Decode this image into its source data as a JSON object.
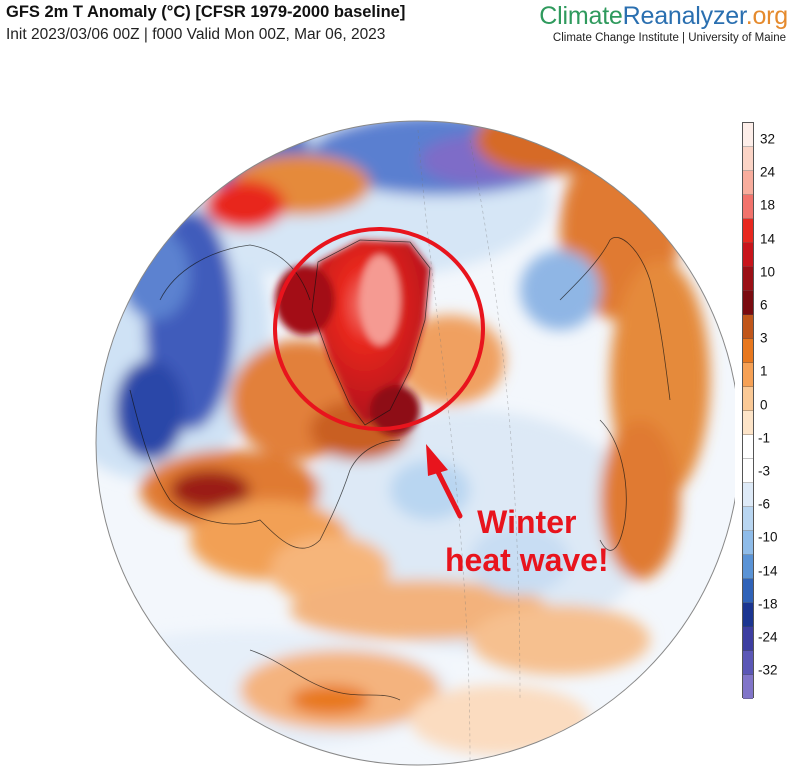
{
  "header": {
    "title": "GFS 2m T Anomaly (°C) [CFSR 1979-2000 baseline]",
    "subtitle": "Init 2023/03/06 00Z | f000 Valid Mon 00Z, Mar 06, 2023"
  },
  "brand": {
    "part1": "Climate",
    "part2": "Reanalyzer",
    "part3": ".org",
    "affiliation": "Climate Change Institute | University of Maine",
    "colors": {
      "part1": "#2f9a5d",
      "part2": "#2a6fb0",
      "part3": "#e58a2d"
    }
  },
  "map": {
    "projection": "orthographic",
    "annotation": {
      "line1": "Winter",
      "line2": "heat wave!",
      "color": "#e8141d"
    },
    "highlight_circle_color": "#e8141d"
  },
  "colorbar": {
    "labels": [
      "32",
      "24",
      "18",
      "14",
      "10",
      "6",
      "3",
      "1",
      "0",
      "-1",
      "-3",
      "-6",
      "-10",
      "-14",
      "-18",
      "-24",
      "-32"
    ],
    "colors": [
      "#fdeee9",
      "#fbd4c6",
      "#f8ad9d",
      "#f2736c",
      "#e8281f",
      "#c8141b",
      "#9b0f15",
      "#7a0b10",
      "#c0561a",
      "#e8781e",
      "#f6a155",
      "#fac996",
      "#fde4c8",
      "#ffffff",
      "#ffffff",
      "#deeaf7",
      "#b9d6f1",
      "#8fbce9",
      "#5a93d6",
      "#2f62b8",
      "#1b3591",
      "#3d3ea1",
      "#5b57b6",
      "#8175c9"
    ]
  }
}
